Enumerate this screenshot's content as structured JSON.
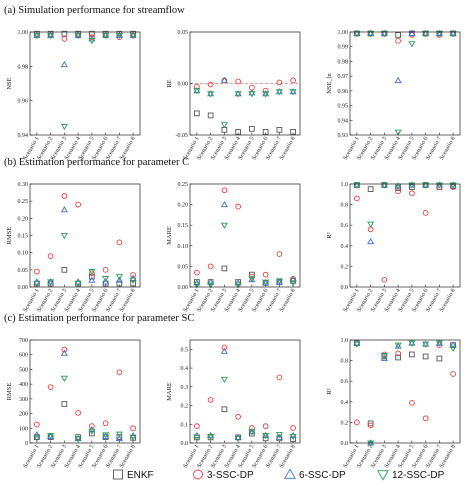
{
  "sections": [
    {
      "title": "(a) Simulation performance for streamflow"
    },
    {
      "title": "(b) Estimation performance for parameter C"
    },
    {
      "title": "(c) Estimation performance for parameter SC"
    }
  ],
  "series_styles": [
    {
      "name": "ENKF",
      "marker": "square",
      "color": "#555555"
    },
    {
      "name": "3-SSC-DP",
      "marker": "circle",
      "color": "#e8403a"
    },
    {
      "name": "6-SSC-DP",
      "marker": "triangle-up",
      "color": "#3f6fd0"
    },
    {
      "name": "12-SSC-DP",
      "marker": "triangle-down",
      "color": "#2f9a52"
    }
  ],
  "chart_data": [
    {
      "type": "scatter",
      "panel": "a1",
      "ylabel": "NSE",
      "ylim": [
        0.94,
        1.0
      ],
      "yticks": [
        "0.94",
        "0.96",
        "0.98",
        "1.00"
      ],
      "ytick_values": [
        0.94,
        0.96,
        0.98,
        1.0
      ],
      "categories": [
        "Scenario 1",
        "Scenario 2",
        "Scenario 3",
        "Scenario 4",
        "Scenario 5",
        "Scenario 6",
        "Scenario 7",
        "Scenario 8"
      ],
      "series": [
        {
          "name": "ENKF",
          "values": [
            0.999,
            0.999,
            0.999,
            0.999,
            0.999,
            0.999,
            0.999,
            0.999
          ]
        },
        {
          "name": "3-SSC-DP",
          "values": [
            0.998,
            0.998,
            0.996,
            0.998,
            0.997,
            0.998,
            0.997,
            0.998
          ]
        },
        {
          "name": "6-SSC-DP",
          "values": [
            0.998,
            0.998,
            0.981,
            0.998,
            0.996,
            0.998,
            0.998,
            0.998
          ]
        },
        {
          "name": "12-SSC-DP",
          "values": [
            0.998,
            0.998,
            0.945,
            0.998,
            0.995,
            0.998,
            0.998,
            0.998
          ]
        }
      ]
    },
    {
      "type": "scatter",
      "panel": "a2",
      "ylabel": "RE",
      "ylim": [
        -0.05,
        0.05
      ],
      "yticks": [
        "-0.05",
        "0.00",
        "0.05"
      ],
      "ytick_values": [
        -0.05,
        0.0,
        0.05
      ],
      "refline": 0.0,
      "categories": [
        "Scenario 1",
        "Scenario 2",
        "Scenario 3",
        "Scenario 4",
        "Scenario 5",
        "Scenario 6",
        "Scenario 7",
        "Scenario 8"
      ],
      "series": [
        {
          "name": "ENKF",
          "values": [
            -0.029,
            -0.031,
            -0.045,
            -0.047,
            -0.044,
            -0.047,
            -0.045,
            -0.047
          ]
        },
        {
          "name": "3-SSC-DP",
          "values": [
            -0.003,
            -0.001,
            0.003,
            0.002,
            -0.004,
            -0.007,
            0.001,
            0.003
          ]
        },
        {
          "name": "6-SSC-DP",
          "values": [
            -0.007,
            -0.01,
            0.003,
            -0.01,
            -0.009,
            -0.01,
            -0.008,
            -0.008
          ]
        },
        {
          "name": "12-SSC-DP",
          "values": [
            -0.007,
            -0.01,
            -0.04,
            -0.01,
            -0.01,
            -0.01,
            -0.008,
            -0.008
          ]
        }
      ]
    },
    {
      "type": "scatter",
      "panel": "a3",
      "ylabel": "NSE_ln",
      "ylim": [
        0.93,
        1.0
      ],
      "yticks": [
        "0.93",
        "0.94",
        "0.95",
        "0.96",
        "0.97",
        "0.98",
        "0.99",
        "1.00"
      ],
      "ytick_values": [
        0.93,
        0.94,
        0.95,
        0.96,
        0.97,
        0.98,
        0.99,
        1.0
      ],
      "categories": [
        "Scenario 1",
        "Scenario 2",
        "Scenario 3",
        "Scenario 4",
        "Scenario 5",
        "Scenario 6",
        "Scenario 7",
        "Scenario 8"
      ],
      "series": [
        {
          "name": "ENKF",
          "values": [
            0.999,
            0.999,
            0.999,
            0.998,
            0.999,
            0.999,
            0.999,
            0.999
          ]
        },
        {
          "name": "3-SSC-DP",
          "values": [
            0.999,
            0.999,
            0.999,
            0.994,
            0.998,
            0.999,
            0.998,
            0.999
          ]
        },
        {
          "name": "6-SSC-DP",
          "values": [
            0.999,
            0.999,
            0.999,
            0.967,
            0.999,
            0.999,
            0.999,
            0.999
          ]
        },
        {
          "name": "12-SSC-DP",
          "values": [
            0.999,
            0.999,
            0.999,
            0.932,
            0.992,
            0.999,
            0.999,
            0.999
          ]
        }
      ]
    },
    {
      "type": "scatter",
      "panel": "b1",
      "ylabel": "RMSE",
      "ylim": [
        0,
        0.3
      ],
      "yticks": [
        "0.00",
        "0.05",
        "0.10",
        "0.15",
        "0.20",
        "0.25",
        "0.30"
      ],
      "ytick_values": [
        0,
        0.05,
        0.1,
        0.15,
        0.2,
        0.25,
        0.3
      ],
      "categories": [
        "Scenario 1",
        "Scenario 2",
        "Scenario 3",
        "Scenario 4",
        "Scenario 5",
        "Scenario 6",
        "Scenario 7",
        "Scenario 8"
      ],
      "series": [
        {
          "name": "ENKF",
          "values": [
            0.01,
            0.01,
            0.05,
            0.01,
            0.03,
            0.01,
            0.01,
            0.01
          ]
        },
        {
          "name": "3-SSC-DP",
          "values": [
            0.045,
            0.09,
            0.265,
            0.24,
            0.04,
            0.05,
            0.13,
            0.035
          ]
        },
        {
          "name": "6-SSC-DP",
          "values": [
            0.015,
            0.015,
            0.225,
            0.015,
            0.02,
            0.015,
            0.02,
            0.025
          ]
        },
        {
          "name": "12-SSC-DP",
          "values": [
            0.01,
            0.015,
            0.15,
            0.01,
            0.045,
            0.025,
            0.03,
            0.02
          ]
        }
      ]
    },
    {
      "type": "scatter",
      "panel": "b2",
      "ylabel": "MARE",
      "ylim": [
        0,
        0.25
      ],
      "yticks": [
        "0.00",
        "0.05",
        "0.10",
        "0.15",
        "0.20",
        "0.25"
      ],
      "ytick_values": [
        0,
        0.05,
        0.1,
        0.15,
        0.2,
        0.25
      ],
      "categories": [
        "Scenario 1",
        "Scenario 2",
        "Scenario 3",
        "Scenario 4",
        "Scenario 5",
        "Scenario 6",
        "Scenario 7",
        "Scenario 8"
      ],
      "series": [
        {
          "name": "ENKF",
          "values": [
            0.012,
            0.012,
            0.045,
            0.012,
            0.03,
            0.01,
            0.012,
            0.015
          ]
        },
        {
          "name": "3-SSC-DP",
          "values": [
            0.035,
            0.05,
            0.235,
            0.195,
            0.025,
            0.03,
            0.08,
            0.02
          ]
        },
        {
          "name": "6-SSC-DP",
          "values": [
            0.01,
            0.012,
            0.2,
            0.01,
            0.018,
            0.01,
            0.012,
            0.018
          ]
        },
        {
          "name": "12-SSC-DP",
          "values": [
            0.005,
            0.005,
            0.15,
            0.005,
            0.02,
            0.012,
            0.015,
            0.01
          ]
        }
      ]
    },
    {
      "type": "scatter",
      "panel": "b3",
      "ylabel": "R²",
      "ylim": [
        0,
        1.0
      ],
      "yticks": [
        "0.0",
        "0.2",
        "0.4",
        "0.6",
        "0.8",
        "1.0"
      ],
      "ytick_values": [
        0,
        0.2,
        0.4,
        0.6,
        0.8,
        1.0
      ],
      "categories": [
        "Scenario 1",
        "Scenario 2",
        "Scenario 3",
        "Scenario 4",
        "Scenario 5",
        "Scenario 6",
        "Scenario 7",
        "Scenario 8"
      ],
      "series": [
        {
          "name": "ENKF",
          "values": [
            0.99,
            0.95,
            0.99,
            0.96,
            0.97,
            0.99,
            0.97,
            0.98
          ]
        },
        {
          "name": "3-SSC-DP",
          "values": [
            0.86,
            0.56,
            0.07,
            0.93,
            0.91,
            0.72,
            0.97,
            0.97
          ]
        },
        {
          "name": "6-SSC-DP",
          "values": [
            0.99,
            0.44,
            0.99,
            0.98,
            0.99,
            0.99,
            0.99,
            0.99
          ]
        },
        {
          "name": "12-SSC-DP",
          "values": [
            0.99,
            0.61,
            0.99,
            0.98,
            0.99,
            0.99,
            0.99,
            0.99
          ]
        }
      ]
    },
    {
      "type": "scatter",
      "panel": "c1",
      "ylabel": "RMSE",
      "ylim": [
        0,
        700
      ],
      "yticks": [
        "0",
        "100",
        "200",
        "300",
        "400",
        "500",
        "600",
        "700"
      ],
      "ytick_values": [
        0,
        100,
        200,
        300,
        400,
        500,
        600,
        700
      ],
      "categories": [
        "Scenario 1",
        "Scenario 2",
        "Scenario 3",
        "Scenario 4",
        "Scenario 5",
        "Scenario 6",
        "Scenario 7",
        "Scenario 8"
      ],
      "series": [
        {
          "name": "ENKF",
          "values": [
            40,
            40,
            265,
            40,
            65,
            40,
            40,
            35
          ]
        },
        {
          "name": "3-SSC-DP",
          "values": [
            125,
            380,
            635,
            205,
            115,
            135,
            480,
            100
          ]
        },
        {
          "name": "6-SSC-DP",
          "values": [
            55,
            45,
            610,
            30,
            90,
            45,
            30,
            50
          ]
        },
        {
          "name": "12-SSC-DP",
          "values": [
            35,
            50,
            440,
            30,
            80,
            55,
            60,
            40
          ]
        }
      ]
    },
    {
      "type": "scatter",
      "panel": "c2",
      "ylabel": "MARE",
      "ylim": [
        0,
        0.55
      ],
      "yticks": [
        "0.0",
        "0.1",
        "0.2",
        "0.3",
        "0.4",
        "0.5"
      ],
      "ytick_values": [
        0,
        0.1,
        0.2,
        0.3,
        0.4,
        0.5
      ],
      "categories": [
        "Scenario 1",
        "Scenario 2",
        "Scenario 3",
        "Scenario 4",
        "Scenario 5",
        "Scenario 6",
        "Scenario 7",
        "Scenario 8"
      ],
      "series": [
        {
          "name": "ENKF",
          "values": [
            0.03,
            0.03,
            0.18,
            0.03,
            0.05,
            0.025,
            0.025,
            0.02
          ]
        },
        {
          "name": "3-SSC-DP",
          "values": [
            0.09,
            0.23,
            0.51,
            0.14,
            0.08,
            0.09,
            0.35,
            0.08
          ]
        },
        {
          "name": "6-SSC-DP",
          "values": [
            0.04,
            0.04,
            0.49,
            0.03,
            0.06,
            0.04,
            0.03,
            0.04
          ]
        },
        {
          "name": "12-SSC-DP",
          "values": [
            0.03,
            0.035,
            0.34,
            0.025,
            0.06,
            0.04,
            0.045,
            0.035
          ]
        }
      ]
    },
    {
      "type": "scatter",
      "panel": "c3",
      "ylabel": "R²",
      "ylim": [
        0,
        1.0
      ],
      "yticks": [
        "0.0",
        "0.2",
        "0.4",
        "0.6",
        "0.8",
        "1.0"
      ],
      "ytick_values": [
        0,
        0.2,
        0.4,
        0.6,
        0.8,
        1.0
      ],
      "categories": [
        "Scenario 1",
        "Scenario 2",
        "Scenario 3",
        "Scenario 4",
        "Scenario 5",
        "Scenario 6",
        "Scenario 7",
        "Scenario 8"
      ],
      "series": [
        {
          "name": "ENKF",
          "values": [
            0.97,
            0.19,
            0.84,
            0.83,
            0.86,
            0.84,
            0.82,
            0.95
          ]
        },
        {
          "name": "3-SSC-DP",
          "values": [
            0.2,
            0.17,
            0.86,
            0.87,
            0.39,
            0.24,
            0.95,
            0.67
          ]
        },
        {
          "name": "6-SSC-DP",
          "values": [
            0.97,
            0.0,
            0.82,
            0.94,
            0.97,
            0.96,
            0.97,
            0.95
          ]
        },
        {
          "name": "12-SSC-DP",
          "values": [
            0.96,
            0.0,
            0.85,
            0.95,
            0.97,
            0.96,
            0.97,
            0.92
          ]
        }
      ]
    }
  ]
}
